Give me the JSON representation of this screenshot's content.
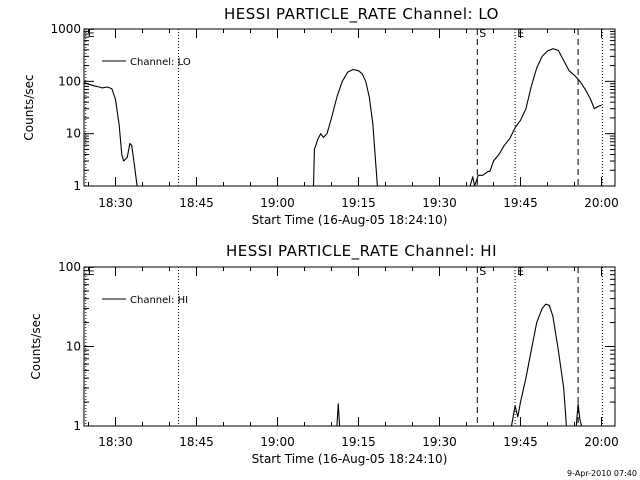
{
  "footer": "9-Apr-2010 07:40",
  "chart_data": [
    {
      "type": "line",
      "title": "HESSI PARTICLE_RATE Channel: LO",
      "xlabel": "Start Time (16-Aug-05 18:24:10)",
      "ylabel": "Counts/sec",
      "yscale": "log",
      "ylim": [
        1,
        1000
      ],
      "xlim": [
        "18:24:10",
        "20:02:30"
      ],
      "x_tick_labels": [
        "18:30",
        "18:45",
        "19:00",
        "19:15",
        "19:30",
        "19:45",
        "20:00"
      ],
      "y_tick_labels": [
        "1",
        "10",
        "100",
        "1000"
      ],
      "legend": {
        "entries": [
          "Channel: LO"
        ],
        "placement": "top-left"
      },
      "markers": [
        {
          "label": "E",
          "time": "18:24:30",
          "style": "dotted"
        },
        {
          "label": "",
          "time": "18:41:40",
          "style": "dotted"
        },
        {
          "label": "S",
          "time": "19:37:00",
          "style": "dashed"
        },
        {
          "label": "E",
          "time": "19:44:00",
          "style": "dotted"
        },
        {
          "label": "",
          "time": "19:55:40",
          "style": "dashed"
        },
        {
          "label": "",
          "time": "20:00:10",
          "style": "dotted"
        }
      ],
      "series": [
        {
          "name": "Channel: LO",
          "segments": [
            [
              [
                "18:24:10",
                95
              ],
              [
                "18:25:00",
                88
              ],
              [
                "18:26:00",
                82
              ],
              [
                "18:27:00",
                78
              ],
              [
                "18:27:30",
                75
              ],
              [
                "18:28:30",
                78
              ],
              [
                "18:29:20",
                72
              ],
              [
                "18:30:00",
                45
              ],
              [
                "18:30:40",
                15
              ],
              [
                "18:31:10",
                4
              ],
              [
                "18:31:30",
                3
              ],
              [
                "18:32:10",
                3.5
              ],
              [
                "18:32:40",
                6.5
              ],
              [
                "18:33:00",
                6
              ],
              [
                "18:33:30",
                2.5
              ],
              [
                "18:34:00",
                1
              ]
            ],
            [
              [
                "19:06:40",
                1
              ],
              [
                "19:06:50",
                5
              ],
              [
                "19:07:30",
                8
              ],
              [
                "19:08:00",
                10
              ],
              [
                "19:08:30",
                8.5
              ],
              [
                "19:09:10",
                10
              ],
              [
                "19:10:00",
                20
              ],
              [
                "19:11:00",
                50
              ],
              [
                "19:12:00",
                100
              ],
              [
                "19:13:00",
                150
              ],
              [
                "19:14:00",
                168
              ],
              [
                "19:15:00",
                160
              ],
              [
                "19:15:40",
                140
              ],
              [
                "19:16:20",
                100
              ],
              [
                "19:17:00",
                50
              ],
              [
                "19:17:40",
                15
              ],
              [
                "19:18:00",
                5
              ],
              [
                "19:18:30",
                1
              ]
            ],
            [
              [
                "19:35:40",
                1
              ],
              [
                "19:36:10",
                1.5
              ],
              [
                "19:36:30",
                1
              ],
              [
                "19:37:10",
                1.6
              ],
              [
                "19:38:00",
                1.6
              ],
              [
                "19:39:00",
                1.9
              ],
              [
                "19:39:20",
                1.9
              ],
              [
                "19:40:00",
                3
              ],
              [
                "19:41:00",
                4
              ],
              [
                "19:42:00",
                6
              ],
              [
                "19:43:00",
                8
              ],
              [
                "19:44:00",
                13
              ],
              [
                "19:45:00",
                18
              ],
              [
                "19:46:00",
                30
              ],
              [
                "19:47:00",
                80
              ],
              [
                "19:48:00",
                180
              ],
              [
                "19:49:00",
                300
              ],
              [
                "19:50:00",
                380
              ],
              [
                "19:51:00",
                420
              ],
              [
                "19:52:00",
                390
              ],
              [
                "19:53:00",
                250
              ],
              [
                "19:54:00",
                160
              ],
              [
                "19:55:00",
                130
              ],
              [
                "19:56:00",
                100
              ],
              [
                "19:57:00",
                70
              ],
              [
                "19:58:00",
                45
              ],
              [
                "19:58:40",
                30
              ],
              [
                "19:59:20",
                33
              ],
              [
                "20:00:00",
                35
              ]
            ]
          ]
        }
      ]
    },
    {
      "type": "line",
      "title": "HESSI PARTICLE_RATE Channel: HI",
      "xlabel": "Start Time (16-Aug-05 18:24:10)",
      "ylabel": "Counts/sec",
      "yscale": "log",
      "ylim": [
        1,
        100
      ],
      "xlim": [
        "18:24:10",
        "20:02:30"
      ],
      "x_tick_labels": [
        "18:30",
        "18:45",
        "19:00",
        "19:15",
        "19:30",
        "19:45",
        "20:00"
      ],
      "y_tick_labels": [
        "1",
        "10",
        "100"
      ],
      "legend": {
        "entries": [
          "Channel: HI"
        ],
        "placement": "top-left"
      },
      "markers": [
        {
          "label": "E",
          "time": "18:24:30",
          "style": "dotted"
        },
        {
          "label": "",
          "time": "18:41:40",
          "style": "dotted"
        },
        {
          "label": "S",
          "time": "19:37:00",
          "style": "dashed"
        },
        {
          "label": "E",
          "time": "19:44:00",
          "style": "dotted"
        },
        {
          "label": "",
          "time": "19:55:40",
          "style": "dashed"
        },
        {
          "label": "",
          "time": "20:00:10",
          "style": "dotted"
        }
      ],
      "series": [
        {
          "name": "Channel: HI",
          "segments": [
            [
              [
                "19:11:00",
                1
              ],
              [
                "19:11:15",
                1.9
              ],
              [
                "19:11:30",
                1
              ]
            ],
            [
              [
                "19:43:20",
                1
              ],
              [
                "19:44:00",
                1.8
              ],
              [
                "19:44:30",
                1.3
              ],
              [
                "19:45:00",
                2
              ],
              [
                "19:46:00",
                4
              ],
              [
                "19:47:00",
                9
              ],
              [
                "19:48:00",
                20
              ],
              [
                "19:49:00",
                30
              ],
              [
                "19:49:40",
                34
              ],
              [
                "19:50:20",
                33
              ],
              [
                "19:51:00",
                24
              ],
              [
                "19:52:00",
                9
              ],
              [
                "19:53:00",
                3
              ],
              [
                "19:53:30",
                1
              ]
            ],
            [
              [
                "19:55:20",
                1
              ],
              [
                "19:55:40",
                1.9
              ],
              [
                "19:56:00",
                1.2
              ],
              [
                "19:56:20",
                1
              ]
            ]
          ]
        }
      ]
    }
  ]
}
